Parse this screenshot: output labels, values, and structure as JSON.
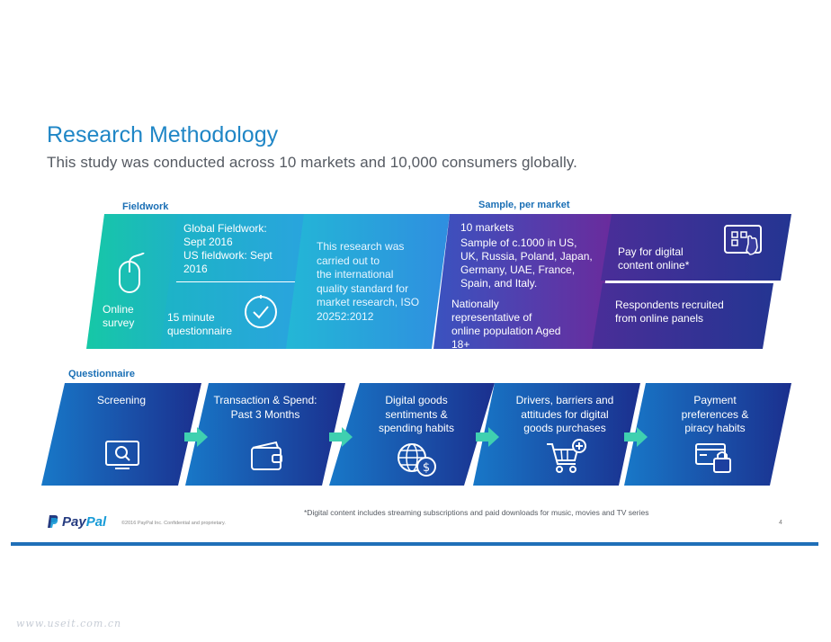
{
  "header": {
    "title": "Research Methodology",
    "subtitle": "This study was conducted across 10 markets and 10,000 consumers globally."
  },
  "sections": {
    "fieldwork": "Fieldwork",
    "sample": "Sample, per market",
    "questionnaire": "Questionnaire"
  },
  "fieldwork": {
    "online_survey": [
      "Online",
      "survey"
    ],
    "global": [
      "Global Fieldwork:",
      "Sept 2016",
      "US fieldwork: Sept",
      "2016"
    ],
    "duration": [
      "15 minute",
      "questionnaire"
    ],
    "standard": [
      "This research was",
      "carried out to",
      "the international",
      "quality standard  for",
      "market research, ISO",
      "20252:2012"
    ]
  },
  "sample": {
    "markets": [
      "10 markets",
      "Sample of c.1000 in US,",
      "UK, Russia, Poland, Japan,",
      "Germany, UAE, France,",
      "Spain, and Italy."
    ],
    "representative": [
      "Nationally",
      "representative of",
      "online population Aged",
      "18+"
    ],
    "digital": [
      "Pay for digital",
      "content online*"
    ],
    "panels": [
      "Respondents  recruited",
      "from online panels"
    ]
  },
  "questionnaire": [
    {
      "label": [
        "Screening"
      ],
      "icon": "monitor-search-icon"
    },
    {
      "label": [
        "Transaction & Spend:",
        "Past 3 Months"
      ],
      "icon": "wallet-icon"
    },
    {
      "label": [
        "Digital goods",
        "sentiments &",
        "spending  habits"
      ],
      "icon": "globe-dollar-icon"
    },
    {
      "label": [
        "Drivers, barriers and",
        "attitudes for digital",
        "goods purchases"
      ],
      "icon": "cart-plus-icon"
    },
    {
      "label": [
        "Payment",
        "preferences &",
        "piracy habits"
      ],
      "icon": "card-lock-icon"
    }
  ],
  "footer": {
    "footnote": "*Digital content includes streaming subscriptions and paid downloads for music, movies and TV series",
    "copyright": "©2016  PayPal Inc. Confidential    and  proprietary.",
    "page": "4",
    "logo_a": "Pay",
    "logo_b": "Pal",
    "watermark": "www.useit.com.cn"
  },
  "colors": {
    "accent": "#1f86c6",
    "teal": "#1fc7a4",
    "blue": "#1a6fb5",
    "purple": "#5b2f98",
    "navy": "#1d2f8a",
    "arrow": "#3fd0b0"
  }
}
